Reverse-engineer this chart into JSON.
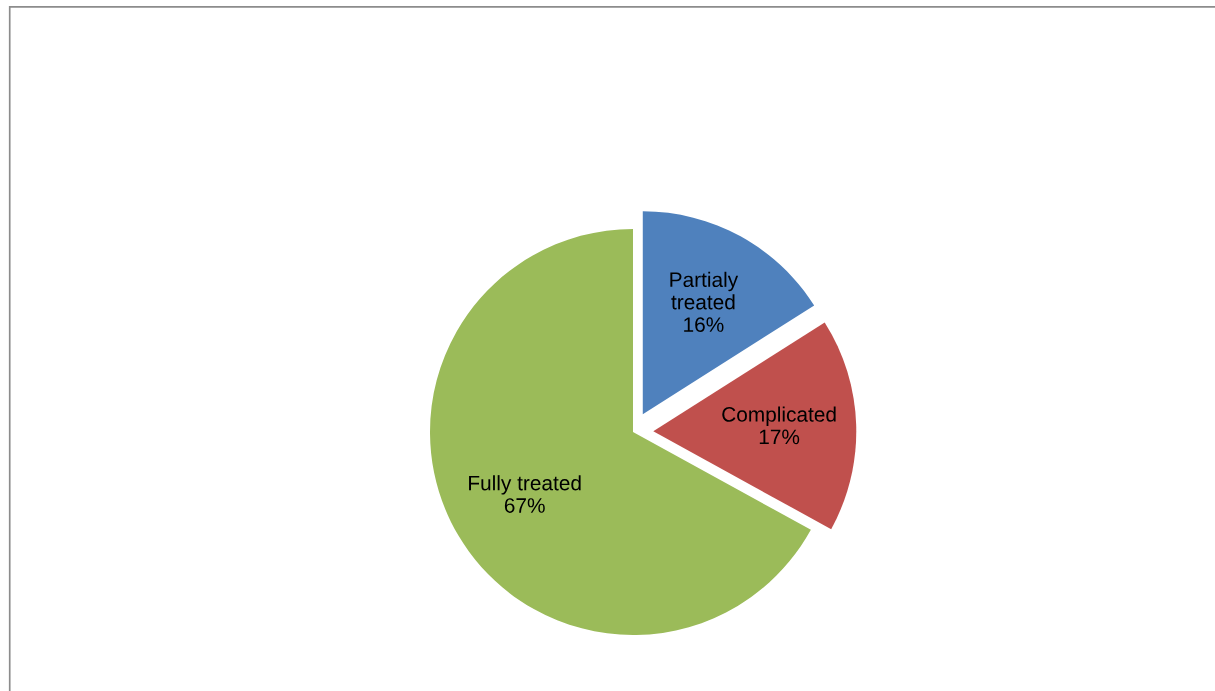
{
  "chart_data": {
    "type": "pie",
    "categories": [
      "Partialy treated",
      "Complicated",
      "Fully treated"
    ],
    "values": [
      16,
      17,
      67
    ],
    "value_labels": [
      "16%",
      "17%",
      "67%"
    ],
    "colors": [
      "#4f81bd",
      "#c0504d",
      "#9bbb59"
    ],
    "legend": false
  }
}
